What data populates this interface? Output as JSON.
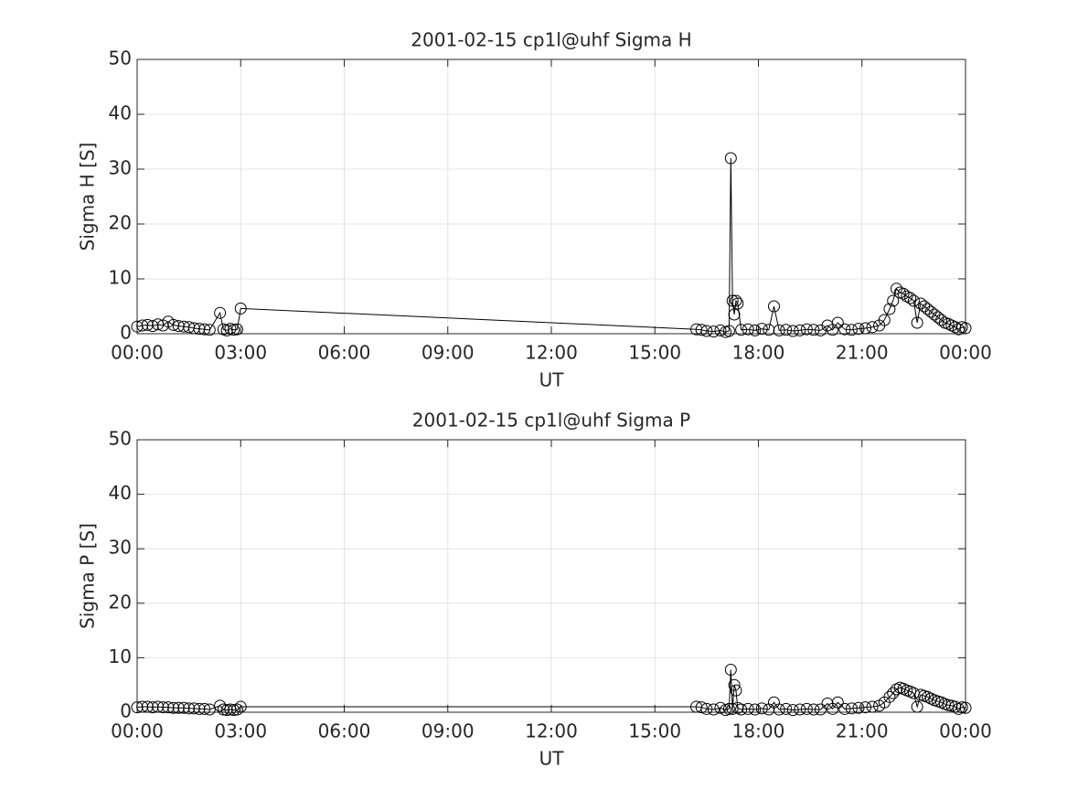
{
  "chart_data": [
    {
      "type": "line",
      "title": "2001-02-15  cp1l@uhf Sigma H",
      "xlabel": "UT",
      "ylabel": "Sigma H [S]",
      "color": "#000000",
      "x": [
        0,
        0.15,
        0.3,
        0.45,
        0.6,
        0.75,
        0.9,
        1.05,
        1.2,
        1.35,
        1.5,
        1.65,
        1.8,
        1.95,
        2.1,
        2.4,
        2.5,
        2.6,
        2.7,
        2.8,
        2.9,
        3.0,
        16.2,
        16.35,
        16.5,
        16.7,
        16.9,
        17.05,
        17.15,
        17.2,
        17.25,
        17.3,
        17.35,
        17.4,
        17.5,
        17.7,
        17.9,
        18.1,
        18.3,
        18.45,
        18.6,
        18.8,
        19.0,
        19.2,
        19.4,
        19.6,
        19.8,
        20.0,
        20.15,
        20.3,
        20.5,
        20.7,
        20.9,
        21.1,
        21.3,
        21.5,
        21.65,
        21.8,
        21.9,
        22.0,
        22.1,
        22.2,
        22.3,
        22.4,
        22.5,
        22.6,
        22.7,
        22.8,
        22.9,
        23.0,
        23.1,
        23.2,
        23.3,
        23.4,
        23.5,
        23.6,
        23.7,
        23.8,
        23.9,
        24.0
      ],
      "values": [
        1.3,
        1.5,
        1.6,
        1.4,
        1.7,
        1.5,
        2.2,
        1.6,
        1.4,
        1.3,
        1.2,
        1.0,
        0.9,
        0.8,
        0.7,
        3.8,
        0.8,
        0.6,
        0.9,
        0.7,
        0.8,
        4.6,
        0.8,
        0.7,
        0.5,
        0.4,
        0.6,
        0.3,
        0.5,
        32,
        6,
        3.5,
        6,
        5.5,
        0.7,
        0.8,
        0.6,
        0.9,
        0.7,
        5,
        0.6,
        0.7,
        0.5,
        0.6,
        0.8,
        0.7,
        0.6,
        1.5,
        0.7,
        2.0,
        0.8,
        0.7,
        0.9,
        1.0,
        1.2,
        1.5,
        2.5,
        4.5,
        6.0,
        8.2,
        7.5,
        7.3,
        6.8,
        6.5,
        6.0,
        2.0,
        5.5,
        5.0,
        4.5,
        4.0,
        3.5,
        3.0,
        2.5,
        2.0,
        1.8,
        1.5,
        1.2,
        0.8,
        1.2,
        1.0
      ],
      "xlim": [
        0,
        24
      ],
      "xticks": [
        {
          "value": 0,
          "label": "00:00"
        },
        {
          "value": 3,
          "label": "03:00"
        },
        {
          "value": 6,
          "label": "06:00"
        },
        {
          "value": 9,
          "label": "09:00"
        },
        {
          "value": 12,
          "label": "12:00"
        },
        {
          "value": 15,
          "label": "15:00"
        },
        {
          "value": 18,
          "label": "18:00"
        },
        {
          "value": 21,
          "label": "21:00"
        },
        {
          "value": 24,
          "label": "00:00"
        }
      ],
      "ylim": [
        0,
        50
      ],
      "yticks": [
        0,
        10,
        20,
        30,
        40,
        50
      ],
      "grid": true
    },
    {
      "type": "line",
      "title": "2001-02-15  cp1l@uhf Sigma P",
      "xlabel": "UT",
      "ylabel": "Sigma P [S]",
      "color": "#000000",
      "x": [
        0,
        0.15,
        0.3,
        0.45,
        0.6,
        0.75,
        0.9,
        1.05,
        1.2,
        1.35,
        1.5,
        1.65,
        1.8,
        1.95,
        2.1,
        2.4,
        2.5,
        2.6,
        2.7,
        2.8,
        2.9,
        3.0,
        16.2,
        16.35,
        16.5,
        16.7,
        16.9,
        17.05,
        17.15,
        17.2,
        17.25,
        17.3,
        17.35,
        17.4,
        17.5,
        17.7,
        17.9,
        18.1,
        18.3,
        18.45,
        18.6,
        18.8,
        19.0,
        19.2,
        19.4,
        19.6,
        19.8,
        20.0,
        20.15,
        20.3,
        20.5,
        20.7,
        20.9,
        21.1,
        21.3,
        21.5,
        21.65,
        21.8,
        21.9,
        22.0,
        22.1,
        22.2,
        22.3,
        22.4,
        22.5,
        22.6,
        22.7,
        22.8,
        22.9,
        23.0,
        23.1,
        23.2,
        23.3,
        23.4,
        23.5,
        23.6,
        23.7,
        23.8,
        23.9,
        24.0
      ],
      "values": [
        0.9,
        1.0,
        1.0,
        0.9,
        1.0,
        0.9,
        0.9,
        0.8,
        0.8,
        0.8,
        0.7,
        0.7,
        0.6,
        0.6,
        0.5,
        1.2,
        0.5,
        0.4,
        0.5,
        0.4,
        0.5,
        1.0,
        1.0,
        0.9,
        0.6,
        0.5,
        0.8,
        0.4,
        0.6,
        7.8,
        0.6,
        5.0,
        4.0,
        0.8,
        0.5,
        0.6,
        0.5,
        0.7,
        0.5,
        1.8,
        0.5,
        0.6,
        0.4,
        0.5,
        0.6,
        0.5,
        0.5,
        1.6,
        0.6,
        1.8,
        0.6,
        0.7,
        0.8,
        0.9,
        1.0,
        1.2,
        1.8,
        2.8,
        3.5,
        4.2,
        4.5,
        4.3,
        4.0,
        3.8,
        3.5,
        1.0,
        3.2,
        3.0,
        2.8,
        2.5,
        2.2,
        2.0,
        1.8,
        1.5,
        1.3,
        1.2,
        1.0,
        0.6,
        0.9,
        0.8
      ],
      "xlim": [
        0,
        24
      ],
      "xticks": [
        {
          "value": 0,
          "label": "00:00"
        },
        {
          "value": 3,
          "label": "03:00"
        },
        {
          "value": 6,
          "label": "06:00"
        },
        {
          "value": 9,
          "label": "09:00"
        },
        {
          "value": 12,
          "label": "12:00"
        },
        {
          "value": 15,
          "label": "15:00"
        },
        {
          "value": 18,
          "label": "18:00"
        },
        {
          "value": 21,
          "label": "21:00"
        },
        {
          "value": 24,
          "label": "00:00"
        }
      ],
      "ylim": [
        0,
        50
      ],
      "yticks": [
        0,
        10,
        20,
        30,
        40,
        50
      ],
      "grid": true
    }
  ]
}
